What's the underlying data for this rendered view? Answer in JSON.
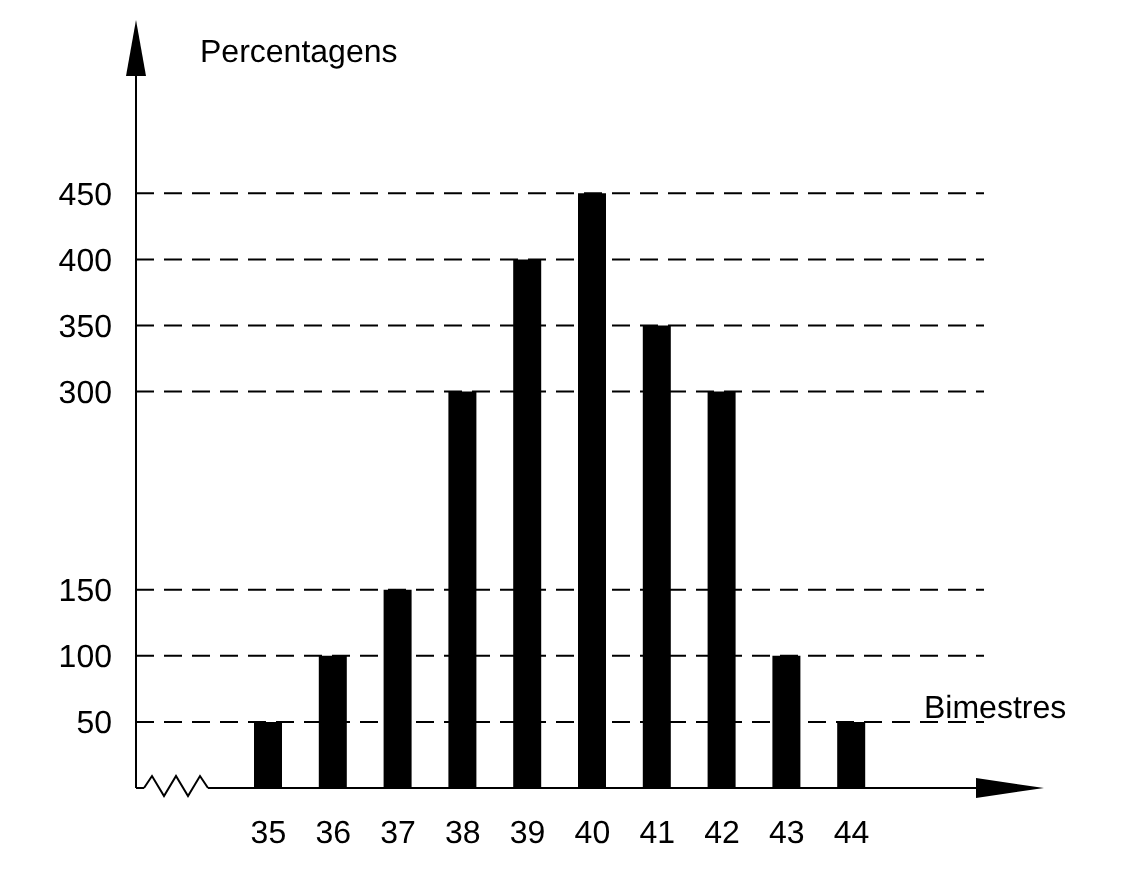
{
  "chart_data": {
    "type": "bar",
    "xlabel": "Bimestres",
    "ylabel": "Percentagens",
    "categories": [
      "35",
      "36",
      "37",
      "38",
      "39",
      "40",
      "41",
      "42",
      "43",
      "44"
    ],
    "values": [
      50,
      100,
      150,
      300,
      400,
      450,
      350,
      300,
      100,
      50
    ],
    "color": "#000000",
    "ylim": [
      0,
      560
    ],
    "yticks": [
      50,
      100,
      150,
      300,
      350,
      400,
      450
    ],
    "grid": "y",
    "legend": false
  }
}
